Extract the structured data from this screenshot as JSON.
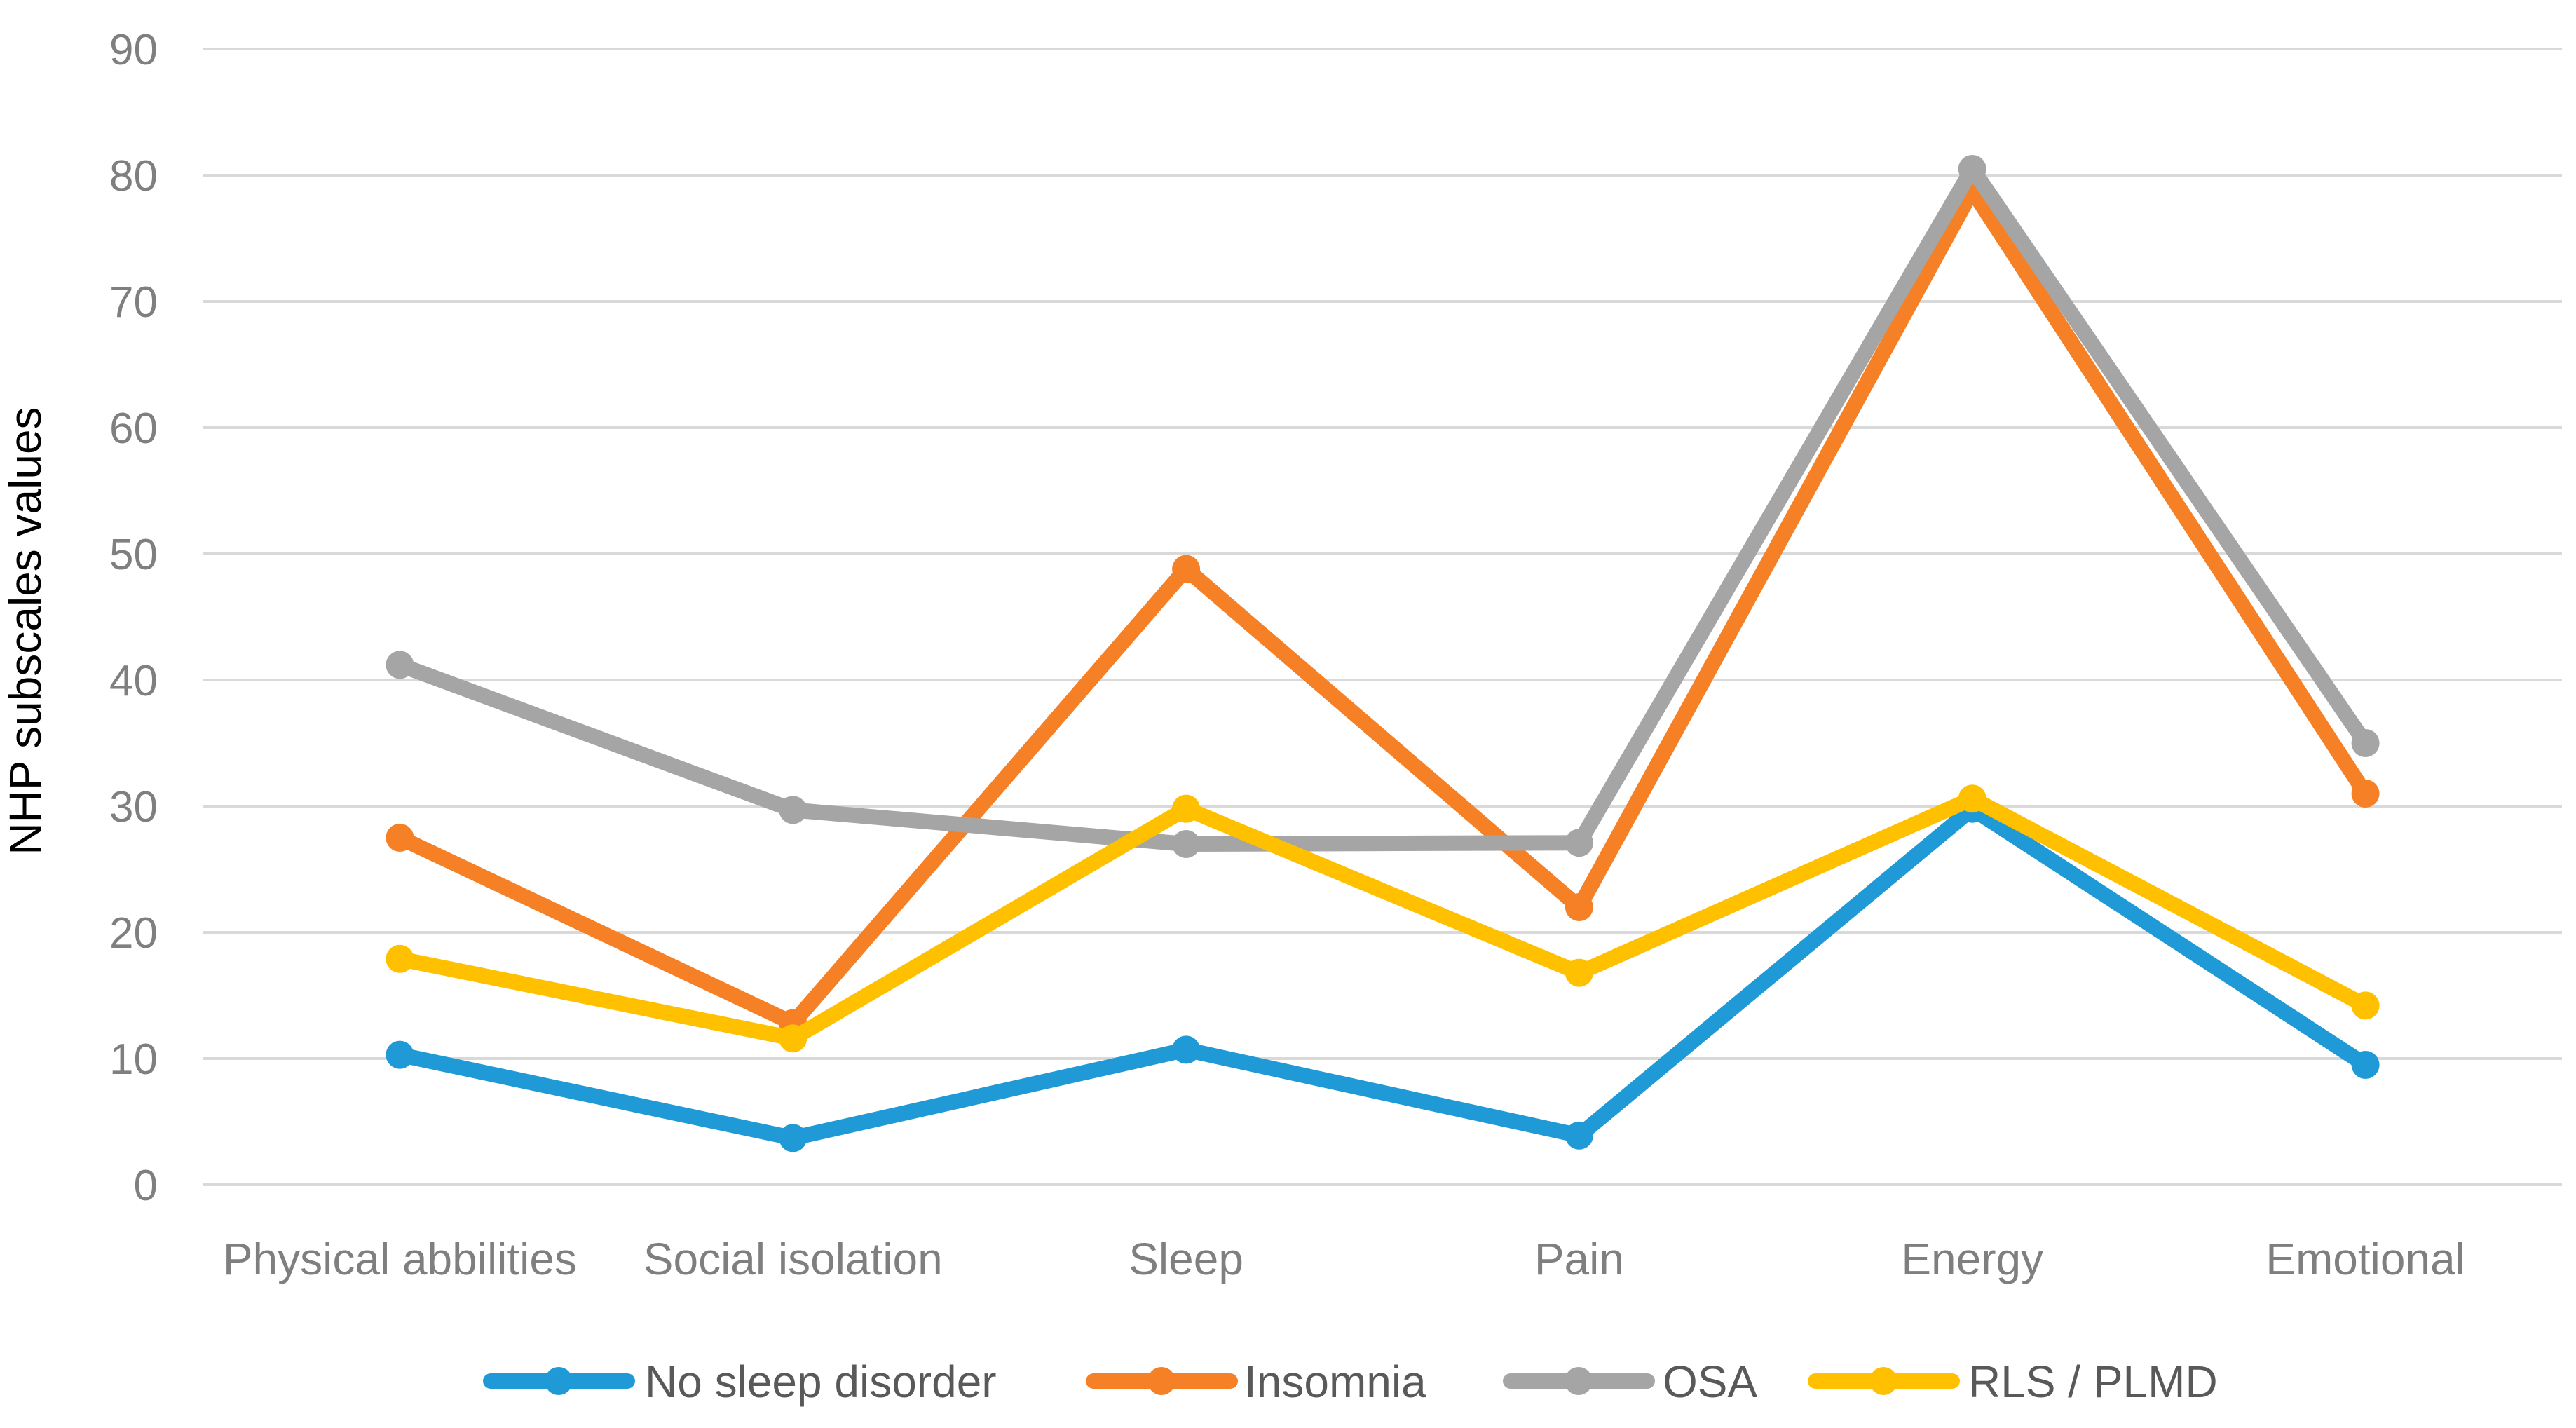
{
  "chart_data": {
    "type": "line",
    "title": "",
    "xlabel": "",
    "ylabel": "NHP subscales values",
    "ylim": [
      0,
      90
    ],
    "yticks": [
      0,
      10,
      20,
      30,
      40,
      50,
      60,
      70,
      80,
      90
    ],
    "grid": true,
    "legend_position": "bottom",
    "categories": [
      "Physical abbilities",
      "Social isolation",
      "Sleep",
      "Pain",
      "Energy",
      "Emotional"
    ],
    "series": [
      {
        "name": "No sleep disorder",
        "color": "#1f9ad6",
        "values": [
          10.3,
          3.7,
          10.7,
          3.9,
          29.8,
          9.5
        ]
      },
      {
        "name": "Insomnia",
        "color": "#f58025",
        "values": [
          27.5,
          12.8,
          48.8,
          22.0,
          78.8,
          31.0
        ]
      },
      {
        "name": "OSA",
        "color": "#a5a5a5",
        "values": [
          41.2,
          29.7,
          27.0,
          27.1,
          80.5,
          35.0
        ]
      },
      {
        "name": "RLS / PLMD",
        "color": "#ffc000",
        "values": [
          17.9,
          11.6,
          29.8,
          16.8,
          30.6,
          14.2
        ]
      }
    ]
  }
}
